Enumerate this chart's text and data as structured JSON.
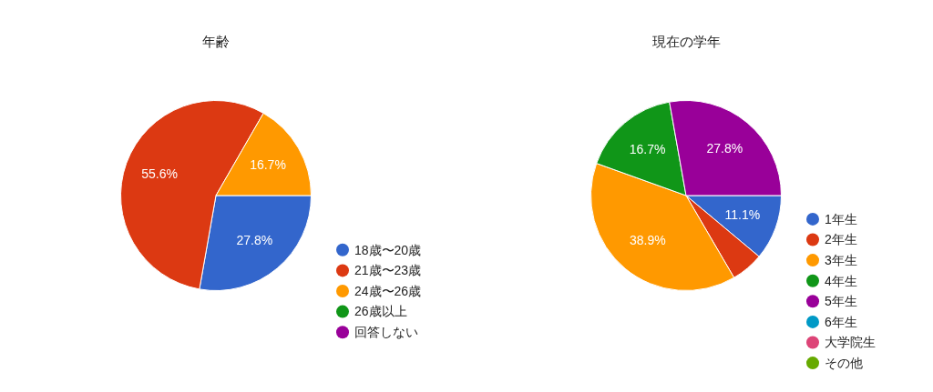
{
  "chart_data": [
    {
      "type": "pie",
      "title": "年齢",
      "categories": [
        "18歳〜20歳",
        "21歳〜23歳",
        "24歳〜26歳",
        "26歳以上",
        "回答しない"
      ],
      "values": [
        27.8,
        55.6,
        16.7,
        0,
        0
      ],
      "colors": [
        "#3366cc",
        "#dc3912",
        "#ff9900",
        "#109618",
        "#990099"
      ],
      "value_labels": [
        "27.8%",
        "55.6%",
        "16.7%",
        null,
        null
      ],
      "legend": "right"
    },
    {
      "type": "pie",
      "title": "現在の学年",
      "categories": [
        "1年生",
        "2年生",
        "3年生",
        "4年生",
        "5年生",
        "6年生",
        "大学院生",
        "その他"
      ],
      "values": [
        11.1,
        5.5,
        38.9,
        16.7,
        27.8,
        0,
        0,
        0
      ],
      "colors": [
        "#3366cc",
        "#dc3912",
        "#ff9900",
        "#109618",
        "#990099",
        "#0099c6",
        "#dd4477",
        "#66aa00"
      ],
      "value_labels": [
        "11.1%",
        null,
        "38.9%",
        "16.7%",
        "27.8%",
        null,
        null,
        null
      ],
      "legend": "right"
    }
  ]
}
